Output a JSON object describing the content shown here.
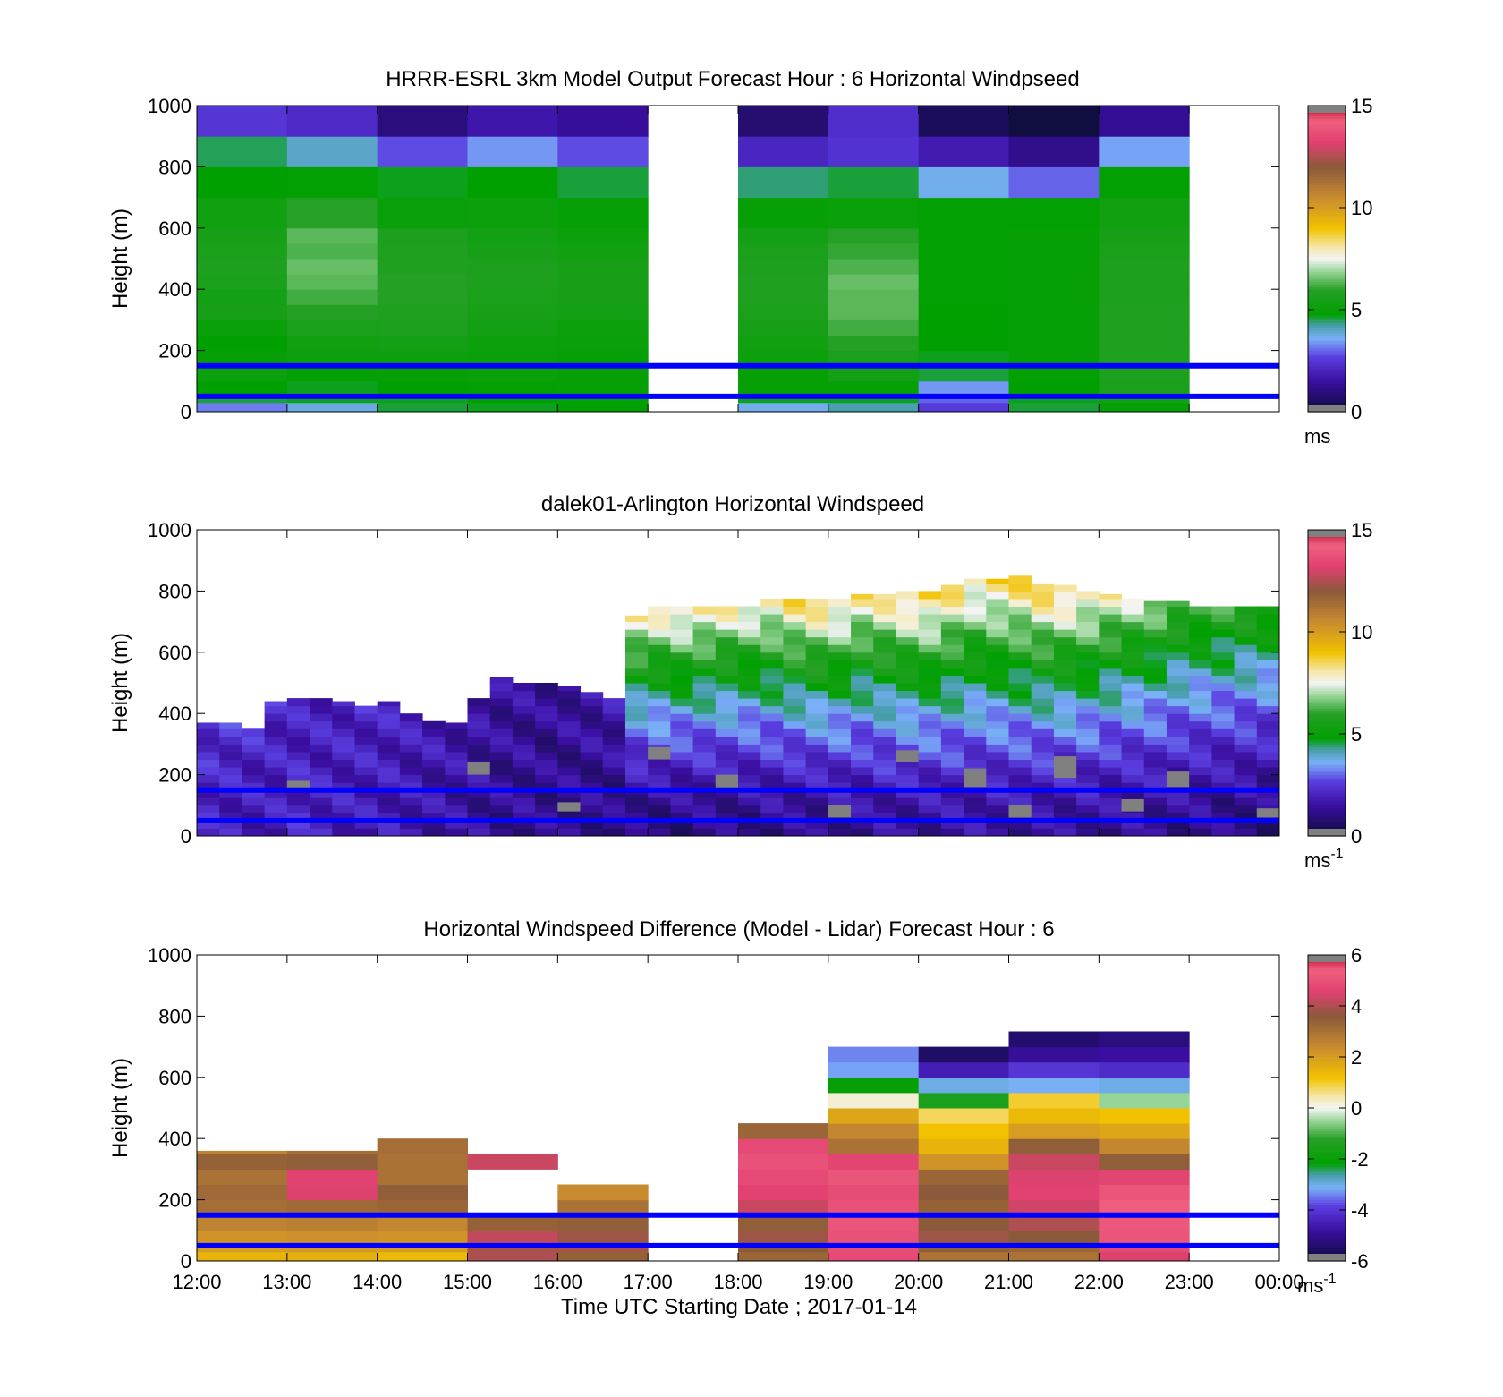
{
  "colors": {
    "reference_lines": "#0000ff",
    "axis": "#000000",
    "no_data": "#ffffff"
  },
  "common": {
    "y_label": "Height (m)",
    "y_ticks": [
      "0",
      "200",
      "400",
      "600",
      "800",
      "1000"
    ],
    "x_ticks": [
      "12:00",
      "13:00",
      "14:00",
      "15:00",
      "16:00",
      "17:00",
      "18:00",
      "19:00",
      "20:00",
      "21:00",
      "22:00",
      "23:00",
      "00:00"
    ],
    "x_label": "Time UTC  Starting Date ; 2017-01-14"
  },
  "chart_data": [
    {
      "type": "heatmap",
      "title": "HRRR-ESRL 3km Model Output   Forecast Hour : 6 Horizontal Windpseed",
      "ylabel": "Height (m)",
      "ylim": [
        0,
        1000
      ],
      "xlim": [
        "12:00",
        "00:00"
      ],
      "hlines": [
        50,
        150
      ],
      "colorbar": {
        "min": 0,
        "max": 15,
        "ticks": [
          "0",
          "5",
          "10",
          "15"
        ],
        "unit": "ms",
        "unit_sup": ""
      },
      "column_hours": [
        12,
        13,
        14,
        15,
        16,
        18,
        19,
        20,
        21,
        22
      ],
      "level_heights_m": [
        0,
        30,
        60,
        100,
        150,
        200,
        250,
        300,
        350,
        400,
        450,
        500,
        550,
        600,
        700,
        800,
        900,
        1000
      ],
      "values_ms": [
        [
          3.2,
          4.6,
          4.8,
          5.2,
          5.0,
          4.8,
          5.1,
          5.5,
          5.4,
          5.6,
          5.7,
          5.6,
          5.5,
          5.3,
          4.8,
          4.5,
          2.5
        ],
        [
          3.8,
          4.7,
          4.7,
          4.9,
          5.2,
          5.3,
          5.6,
          5.9,
          6.2,
          6.4,
          6.5,
          6.3,
          6.4,
          6.0,
          4.9,
          4.0,
          2.2
        ],
        [
          4.6,
          4.7,
          4.8,
          5.0,
          5.2,
          5.4,
          5.7,
          5.8,
          5.9,
          5.9,
          5.8,
          5.8,
          5.7,
          5.1,
          4.7,
          2.8,
          1.0
        ],
        [
          4.7,
          4.8,
          4.9,
          5.1,
          5.1,
          5.2,
          5.4,
          5.5,
          5.6,
          5.7,
          5.7,
          5.5,
          5.4,
          5.2,
          4.8,
          3.4,
          1.7
        ],
        [
          4.8,
          4.9,
          5.0,
          5.0,
          5.0,
          5.1,
          5.2,
          5.4,
          5.5,
          5.5,
          5.5,
          5.3,
          5.2,
          5.0,
          4.6,
          2.8,
          1.4
        ],
        [
          3.7,
          4.7,
          5.0,
          5.0,
          5.2,
          5.3,
          5.5,
          5.6,
          5.8,
          5.8,
          5.7,
          5.6,
          5.4,
          5.0,
          4.4,
          2.1,
          0.8
        ],
        [
          4.2,
          4.7,
          5.0,
          5.4,
          5.6,
          5.9,
          6.2,
          6.4,
          6.4,
          6.5,
          6.3,
          6.1,
          6.0,
          5.1,
          4.6,
          2.4,
          2.3
        ],
        [
          2.6,
          3.0,
          3.4,
          4.6,
          4.7,
          4.8,
          4.8,
          4.8,
          4.9,
          4.9,
          4.9,
          4.9,
          4.9,
          4.9,
          3.7,
          1.8,
          0.5
        ],
        [
          4.6,
          4.7,
          4.8,
          4.9,
          5.0,
          5.0,
          5.0,
          5.0,
          5.0,
          5.0,
          5.0,
          5.0,
          5.0,
          4.9,
          3.0,
          1.2,
          0.1
        ],
        [
          5.0,
          5.3,
          5.6,
          5.7,
          5.8,
          5.8,
          5.8,
          5.8,
          5.7,
          5.7,
          5.7,
          5.6,
          5.5,
          5.3,
          4.9,
          3.5,
          1.3
        ]
      ]
    },
    {
      "type": "heatmap",
      "title": "dalek01-Arlington  Horizontal Windspeed",
      "ylabel": "Height (m)",
      "ylim": [
        0,
        1000
      ],
      "xlim": [
        "12:00",
        "00:00"
      ],
      "hlines": [
        50,
        150
      ],
      "colorbar": {
        "min": 0,
        "max": 15,
        "ticks": [
          "0",
          "5",
          "10",
          "15"
        ],
        "unit": "ms",
        "unit_sup": "-1"
      },
      "profile_interval_min": 15,
      "profile_tops_m": [
        370,
        370,
        360,
        440,
        460,
        450,
        440,
        430,
        440,
        400,
        380,
        370,
        460,
        520,
        510,
        500,
        490,
        470,
        450,
        720,
        760,
        760,
        760,
        760,
        760,
        780,
        780,
        780,
        780,
        790,
        790,
        800,
        810,
        820,
        840,
        840,
        850,
        830,
        820,
        800,
        790,
        780,
        770,
        770,
        760,
        760,
        760,
        760
      ],
      "profile_surface_ms": [
        2.0,
        1.9,
        1.8,
        1.9,
        2.1,
        2.0,
        1.9,
        1.8,
        1.8,
        1.7,
        1.6,
        1.5,
        1.4,
        1.3,
        1.3,
        1.2,
        1.2,
        1.2,
        1.1,
        1.0,
        1.0,
        1.0,
        1.1,
        1.1,
        1.1,
        1.2,
        1.2,
        1.2,
        1.3,
        1.3,
        1.4,
        1.4,
        1.4,
        1.5,
        1.5,
        1.5,
        1.5,
        1.4,
        1.4,
        1.4,
        1.3,
        1.3,
        1.3,
        1.2,
        1.2,
        1.1,
        1.1,
        1.0
      ],
      "profile_aloft_ms": [
        2.4,
        2.4,
        2.3,
        2.2,
        2.0,
        2.0,
        2.1,
        2.2,
        2.1,
        1.9,
        1.8,
        1.7,
        1.6,
        1.5,
        1.5,
        1.4,
        1.5,
        1.6,
        1.8,
        8.0,
        8.4,
        8.5,
        8.3,
        8.2,
        8.0,
        8.2,
        8.6,
        8.8,
        8.5,
        8.2,
        8.4,
        8.7,
        8.9,
        8.6,
        8.3,
        8.5,
        8.8,
        9.0,
        8.7,
        8.2,
        7.8,
        7.4,
        7.0,
        6.6,
        6.3,
        6.2,
        6.1,
        6.0
      ],
      "missing_patches": [
        {
          "time": "13:00",
          "z0": 150,
          "z1": 180
        },
        {
          "time": "15:00",
          "z0": 200,
          "z1": 240
        },
        {
          "time": "16:00",
          "z0": 80,
          "z1": 110
        },
        {
          "time": "17:00",
          "z0": 250,
          "z1": 290
        },
        {
          "time": "17:45",
          "z0": 150,
          "z1": 200
        },
        {
          "time": "19:00",
          "z0": 60,
          "z1": 100
        },
        {
          "time": "19:45",
          "z0": 240,
          "z1": 280
        },
        {
          "time": "20:30",
          "z0": 160,
          "z1": 220
        },
        {
          "time": "21:00",
          "z0": 60,
          "z1": 100
        },
        {
          "time": "21:30",
          "z0": 190,
          "z1": 260
        },
        {
          "time": "22:15",
          "z0": 80,
          "z1": 120
        },
        {
          "time": "22:45",
          "z0": 160,
          "z1": 210
        },
        {
          "time": "23:45",
          "z0": 60,
          "z1": 90
        }
      ]
    },
    {
      "type": "heatmap",
      "title": "Horizontal Windspeed Difference (Model - Lidar) Forecast Hour : 6",
      "ylabel": "Height (m)",
      "xlabel": "Time UTC  Starting Date ; 2017-01-14",
      "ylim": [
        0,
        1000
      ],
      "xlim": [
        "12:00",
        "00:00"
      ],
      "hlines": [
        50,
        150
      ],
      "colorbar": {
        "min": -6,
        "max": 6,
        "ticks": [
          "-6",
          "-4",
          "-2",
          "0",
          "2",
          "4",
          "6"
        ],
        "unit": "ms",
        "unit_sup": "-1"
      },
      "column_hours": [
        12,
        13,
        14,
        15,
        16,
        18,
        19,
        20,
        21,
        22
      ],
      "column_tops_m": [
        360,
        360,
        400,
        360,
        270,
        450,
        730,
        730,
        760,
        760
      ],
      "level_heights_m": [
        0,
        30,
        60,
        100,
        150,
        200,
        250,
        300,
        350,
        400,
        450,
        500,
        550,
        600,
        650,
        700,
        750
      ],
      "values_ms": [
        [
          1.5,
          2.0,
          2.2,
          2.6,
          3.1,
          3.2,
          3.0,
          3.4,
          2.6,
          0,
          0,
          0,
          0,
          0,
          0,
          0
        ],
        [
          1.6,
          2.1,
          2.3,
          2.7,
          3.2,
          4.5,
          4.6,
          3.5,
          3.1,
          0,
          0,
          0,
          0,
          0,
          0,
          0
        ],
        [
          1.4,
          2.0,
          2.2,
          2.5,
          3.3,
          3.5,
          3.0,
          3.0,
          3.1,
          3.2,
          0,
          0,
          0,
          0,
          0,
          0
        ],
        [
          4.0,
          3.9,
          4.2,
          3.4,
          0,
          0,
          0,
          4.3,
          0,
          0,
          0,
          0,
          0,
          0,
          0,
          0
        ],
        [
          3.4,
          3.9,
          3.8,
          3.5,
          3.0,
          2.4,
          0,
          0,
          0,
          0,
          0,
          0,
          0,
          0,
          0,
          0
        ],
        [
          3.3,
          3.6,
          3.8,
          3.5,
          4.3,
          4.6,
          4.8,
          5.0,
          4.8,
          3.3,
          0,
          0,
          0,
          0,
          0,
          0
        ],
        [
          4.8,
          4.9,
          5.0,
          5.1,
          5.0,
          4.9,
          5.1,
          4.7,
          3.0,
          2.5,
          1.8,
          0.2,
          -2.0,
          -3.2,
          -3.4,
          0
        ],
        [
          3.0,
          3.5,
          3.8,
          3.6,
          3.4,
          3.6,
          3.3,
          2.2,
          1.5,
          1.2,
          0.8,
          -1.5,
          -3.0,
          -4.5,
          -5.5,
          0
        ],
        [
          3.0,
          3.3,
          3.6,
          4.0,
          4.4,
          4.6,
          4.5,
          4.3,
          3.5,
          2.0,
          1.4,
          1.0,
          -3.1,
          -4.0,
          -4.9,
          -5.4
        ],
        [
          4.5,
          4.8,
          5.1,
          5.2,
          5.3,
          5.1,
          4.7,
          3.5,
          2.5,
          1.8,
          1.2,
          -0.5,
          -3.0,
          -4.2,
          -4.8,
          -5.2
        ]
      ]
    }
  ]
}
